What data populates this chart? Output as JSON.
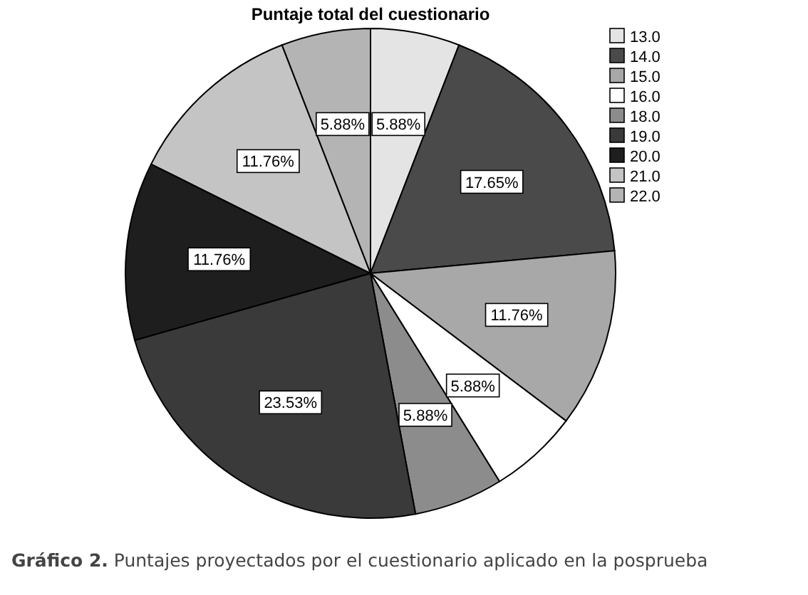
{
  "chart_data": {
    "type": "pie",
    "title": "Puntaje total del cuestionario",
    "categories": [
      "13.0",
      "14.0",
      "15.0",
      "16.0",
      "18.0",
      "19.0",
      "20.0",
      "21.0",
      "22.0"
    ],
    "values": [
      5.88,
      17.65,
      11.76,
      5.88,
      5.88,
      23.53,
      11.76,
      11.76,
      5.88
    ],
    "colors": [
      "#e4e4e4",
      "#4a4a4a",
      "#a8a8a8",
      "#ffffff",
      "#8c8c8c",
      "#3a3a3a",
      "#1e1e1e",
      "#c4c4c4",
      "#b4b4b4"
    ],
    "value_labels": [
      "5.88%",
      "17.65%",
      "11.76%",
      "5.88%",
      "5.88%",
      "23.53%",
      "11.76%",
      "11.76%",
      "5.88%"
    ],
    "legend": "top right",
    "annotations": [
      "Gráfico 2. Puntajes proyectados por el cuestionario aplicado en la posprueba"
    ]
  }
}
